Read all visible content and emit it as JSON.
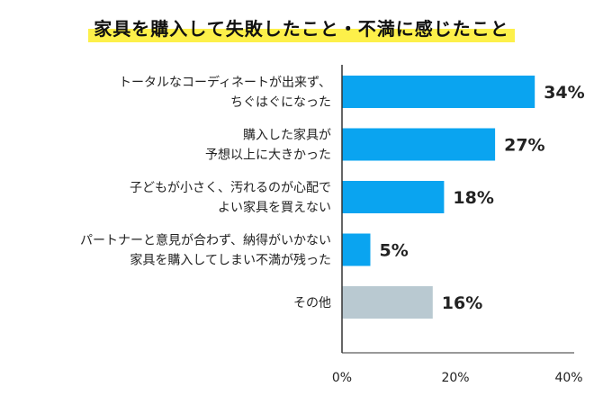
{
  "title": "家具を購入して失敗したこと・不満に感じたこと",
  "colors": {
    "main_bar": "#0aa4f0",
    "other_bar": "#b9c9d1",
    "highlight": "#fdf04a",
    "axis": "#333333"
  },
  "chart_data": {
    "type": "bar",
    "orientation": "horizontal",
    "categories": [
      [
        "トータルなコーディネートが出来ず、",
        "ちぐはぐになった"
      ],
      [
        "購入した家具が",
        "予想以上に大きかった"
      ],
      [
        "子どもが小さく、汚れるのが心配で",
        "よい家具を買えない"
      ],
      [
        "パートナーと意見が合わず、納得がいかない",
        "家具を購入してしまい不満が残った"
      ],
      [
        "その他"
      ]
    ],
    "values": [
      34,
      27,
      18,
      5,
      16
    ],
    "value_labels": [
      "34%",
      "27%",
      "18%",
      "5%",
      "16%"
    ],
    "xlim": [
      0,
      40
    ],
    "xticks": [
      0,
      20,
      40
    ],
    "xtick_labels": [
      "0%",
      "20%",
      "40%"
    ],
    "grid": false,
    "legend": "none"
  }
}
